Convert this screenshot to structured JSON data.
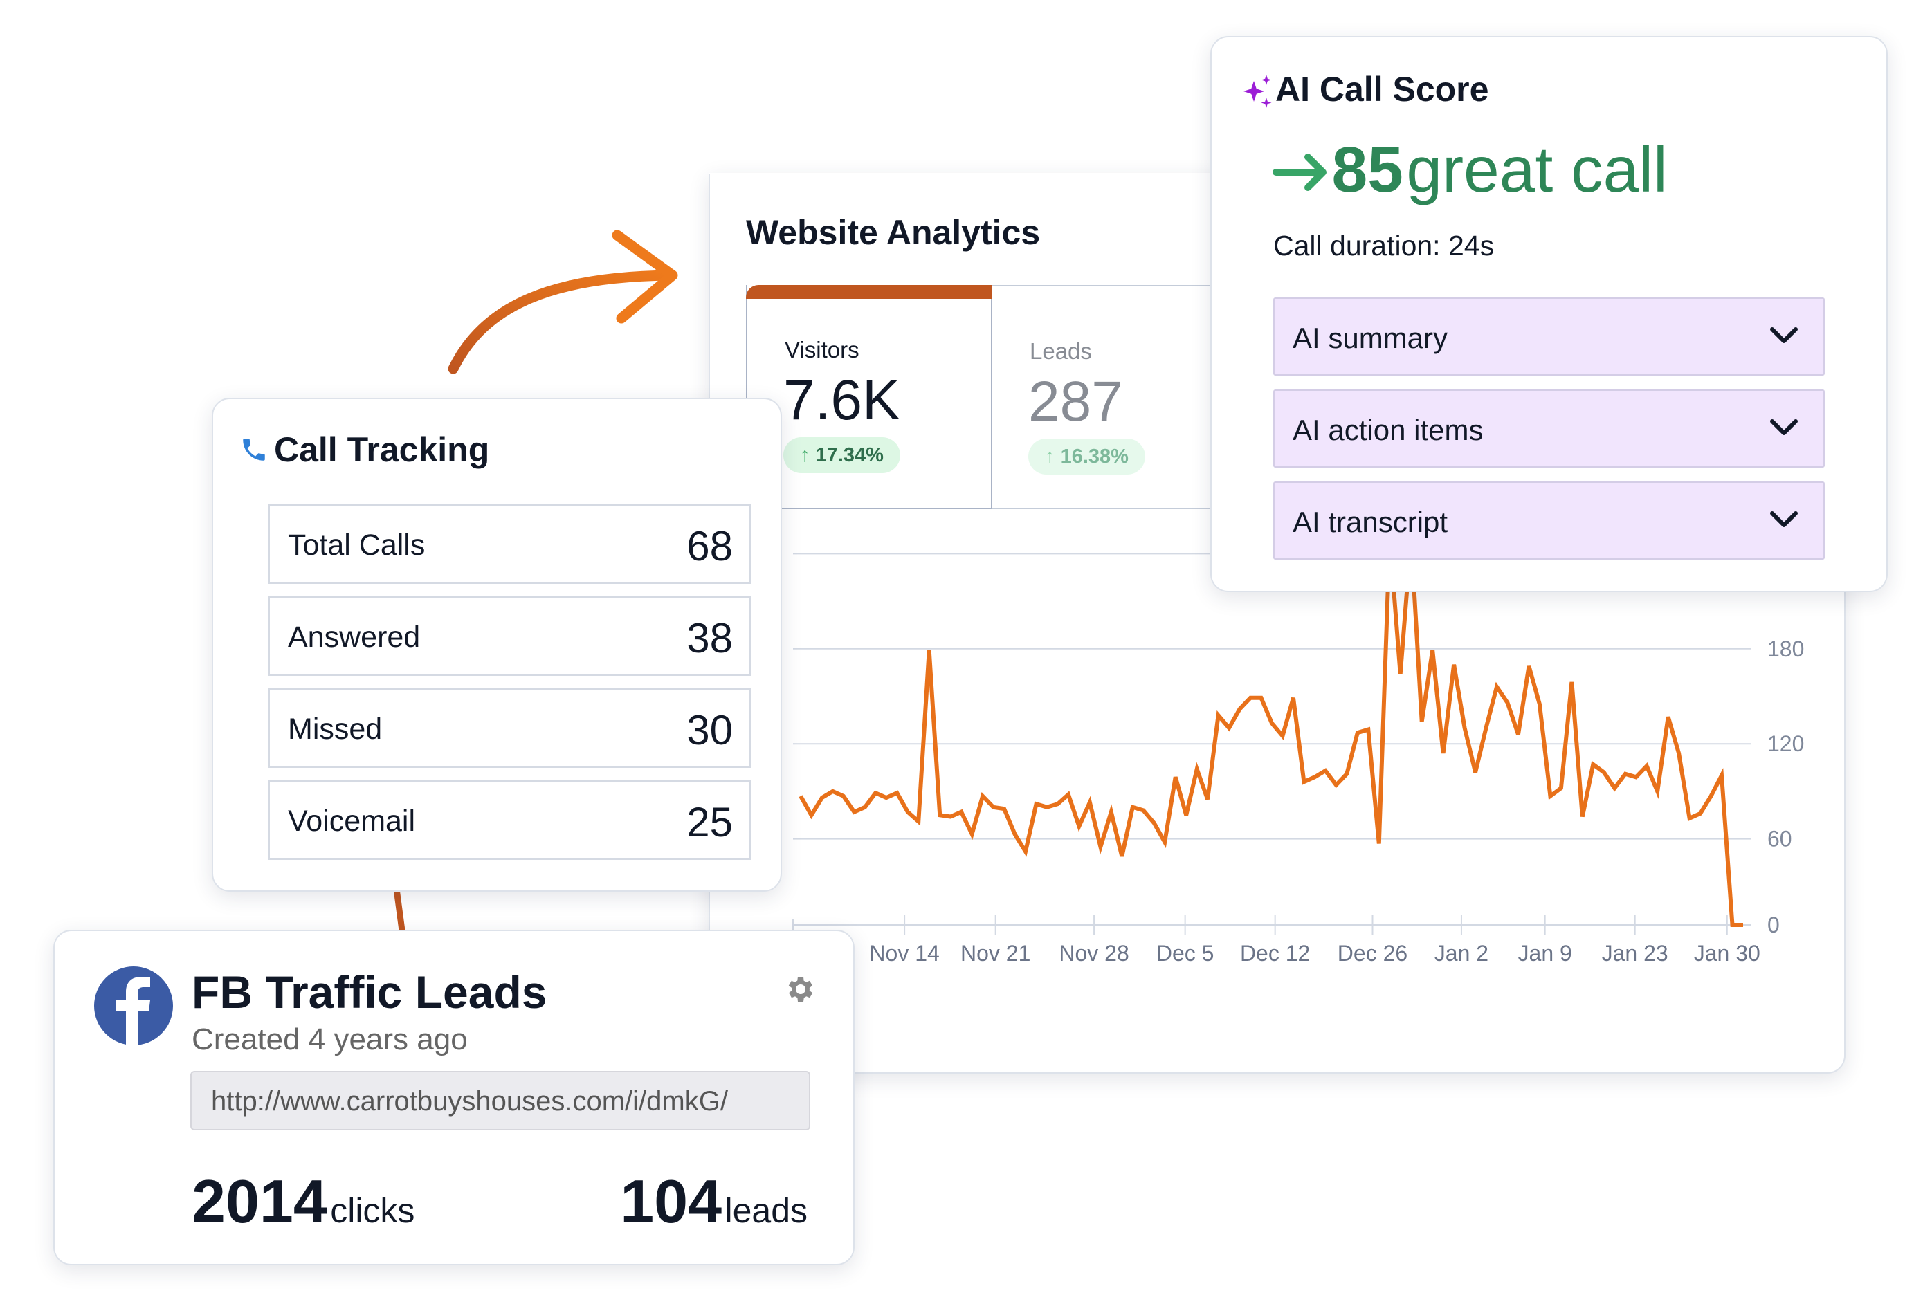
{
  "analytics": {
    "title": "Website Analytics",
    "tabs": [
      {
        "label": "Visitors",
        "value": "7.6K",
        "change": "17.34%",
        "active": true
      },
      {
        "label": "Leads",
        "value": "287",
        "change": "16.38%",
        "active": false
      }
    ]
  },
  "chart_data": {
    "type": "line",
    "color": "#e8711a",
    "y_ticks": [
      0,
      60,
      120,
      180
    ],
    "ylim": [
      0,
      240
    ],
    "grid": true,
    "x_tick_labels": [
      {
        "label": "Nov 14",
        "index": 9.7
      },
      {
        "label": "Nov 21",
        "index": 18.2
      },
      {
        "label": "Nov 28",
        "index": 27.4
      },
      {
        "label": "Dec 5",
        "index": 35.9
      },
      {
        "label": "Dec 12",
        "index": 44.3
      },
      {
        "label": "Dec 26",
        "index": 53.4
      },
      {
        "label": "Jan 2",
        "index": 61.7
      },
      {
        "label": "Jan 9",
        "index": 69.5
      },
      {
        "label": "Jan 23",
        "index": 77.9
      },
      {
        "label": "Jan 30",
        "index": 86.5
      }
    ],
    "values": [
      87,
      75,
      86,
      90,
      87,
      77,
      80,
      89,
      86,
      89,
      77,
      71,
      179,
      75,
      74,
      77,
      63,
      87,
      80,
      79,
      63,
      52,
      82,
      80,
      82,
      88,
      68,
      83,
      55,
      77,
      49,
      80,
      78,
      70,
      58,
      99,
      75,
      104,
      85,
      138,
      130,
      142,
      149,
      149,
      133,
      125,
      149,
      96,
      99,
      103,
      94,
      101,
      127,
      129,
      57,
      250,
      164,
      250,
      134,
      179,
      114,
      170,
      130,
      102,
      130,
      156,
      146,
      126,
      169,
      145,
      87,
      92,
      159,
      74,
      107,
      102,
      92,
      101,
      99,
      106,
      90,
      137,
      114,
      73,
      76,
      87,
      100,
      0,
      0
    ]
  },
  "call_tracking": {
    "title": "Call Tracking",
    "rows": [
      {
        "label": "Total Calls",
        "value": "68"
      },
      {
        "label": "Answered",
        "value": "38"
      },
      {
        "label": "Missed",
        "value": "30"
      },
      {
        "label": "Voicemail",
        "value": "25"
      }
    ]
  },
  "fb": {
    "title": "FB Traffic Leads",
    "subtitle": "Created 4 years ago",
    "url": "http://www.carrotbuyshouses.com/i/dmkG/",
    "clicks_value": "2014",
    "clicks_label": "clicks",
    "leads_value": "104",
    "leads_label": "leads",
    "brand_color": "#3b5ba5"
  },
  "ai": {
    "title": "AI Call Score",
    "score": "85",
    "score_label": "great call",
    "duration_label": "Call duration:",
    "duration_value": "24s",
    "sections": [
      "AI summary",
      "AI action items",
      "AI transcript"
    ],
    "accent": "#2e8657",
    "sparkle_color": "#9b1ed6"
  }
}
